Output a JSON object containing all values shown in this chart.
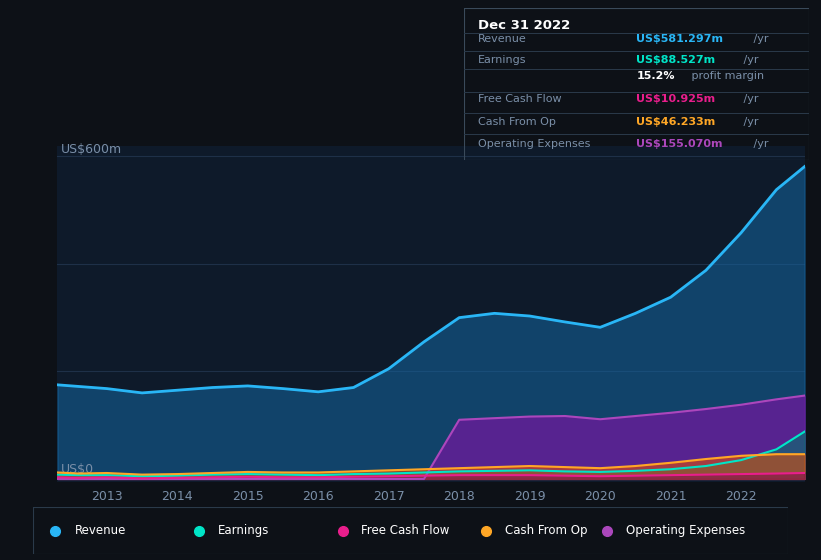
{
  "background_color": "#0d1117",
  "plot_bg_color": "#0e1a2a",
  "years": [
    2012.3,
    2012.6,
    2013.0,
    2013.5,
    2014.0,
    2014.5,
    2015.0,
    2015.5,
    2016.0,
    2016.5,
    2017.0,
    2017.5,
    2018.0,
    2018.5,
    2019.0,
    2019.5,
    2020.0,
    2020.5,
    2021.0,
    2021.5,
    2022.0,
    2022.5,
    2022.9
  ],
  "revenue": [
    175,
    172,
    168,
    160,
    165,
    170,
    173,
    168,
    162,
    170,
    205,
    255,
    300,
    308,
    303,
    292,
    282,
    308,
    338,
    388,
    458,
    538,
    581
  ],
  "earnings": [
    8,
    7,
    7,
    5,
    6,
    8,
    9,
    8,
    7,
    9,
    10,
    12,
    14,
    15,
    16,
    14,
    13,
    15,
    18,
    24,
    35,
    55,
    88
  ],
  "free_cash_flow": [
    3,
    2,
    3,
    1,
    2,
    3,
    4,
    3,
    3,
    4,
    5,
    6,
    7,
    7,
    7,
    6,
    5,
    6,
    7,
    8,
    9,
    10,
    11
  ],
  "cash_from_op": [
    12,
    10,
    11,
    8,
    9,
    11,
    13,
    12,
    12,
    14,
    16,
    18,
    20,
    22,
    24,
    22,
    20,
    24,
    30,
    37,
    43,
    46,
    46
  ],
  "operating_expenses": [
    0,
    0,
    0,
    0,
    0,
    0,
    0,
    0,
    0,
    0,
    0,
    0,
    110,
    113,
    116,
    117,
    111,
    117,
    123,
    130,
    138,
    148,
    155
  ],
  "ylim": [
    -5,
    620
  ],
  "xticks": [
    2013,
    2014,
    2015,
    2016,
    2017,
    2018,
    2019,
    2020,
    2021,
    2022
  ],
  "revenue_color": "#29b6f6",
  "revenue_fill": "#1565a0",
  "earnings_color": "#00e5c8",
  "earnings_fill": "#00796b",
  "free_cash_flow_color": "#e91e8c",
  "free_cash_flow_fill": "#880e4f",
  "cash_from_op_color": "#ffa726",
  "cash_from_op_fill": "#e65100",
  "operating_expenses_color": "#ab47bc",
  "operating_expenses_fill": "#6a1b9a",
  "grid_color": "#1e3048",
  "text_color": "#7a8fa8",
  "info_box": {
    "date": "Dec 31 2022",
    "rows": [
      {
        "label": "Revenue",
        "value": "US$581.297m",
        "suffix": " /yr",
        "color": "#29b6f6"
      },
      {
        "label": "Earnings",
        "value": "US$88.527m",
        "suffix": " /yr",
        "color": "#00e5c8"
      },
      {
        "label": "",
        "value": "15.2%",
        "suffix": " profit margin",
        "color": "#ffffff"
      },
      {
        "label": "Free Cash Flow",
        "value": "US$10.925m",
        "suffix": " /yr",
        "color": "#e91e8c"
      },
      {
        "label": "Cash From Op",
        "value": "US$46.233m",
        "suffix": " /yr",
        "color": "#ffa726"
      },
      {
        "label": "Operating Expenses",
        "value": "US$155.070m",
        "suffix": " /yr",
        "color": "#ab47bc"
      }
    ]
  },
  "legend_items": [
    {
      "label": "Revenue",
      "color": "#29b6f6"
    },
    {
      "label": "Earnings",
      "color": "#00e5c8"
    },
    {
      "label": "Free Cash Flow",
      "color": "#e91e8c"
    },
    {
      "label": "Cash From Op",
      "color": "#ffa726"
    },
    {
      "label": "Operating Expenses",
      "color": "#ab47bc"
    }
  ]
}
